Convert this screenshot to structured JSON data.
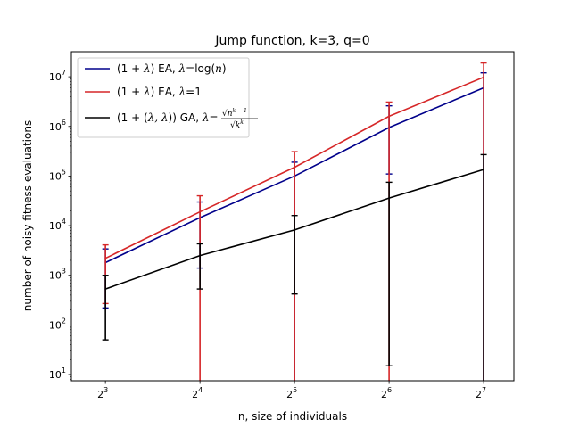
{
  "chart_data": {
    "type": "line",
    "title": "Jump function, k=3, q=0",
    "xlabel": "n, size of individuals",
    "ylabel": "number of noisy fitness evaluations",
    "x_scale": "log2",
    "y_scale": "log10",
    "x": [
      8,
      16,
      32,
      64,
      128
    ],
    "x_tick_labels": [
      {
        "base": "2",
        "exp": "3"
      },
      {
        "base": "2",
        "exp": "4"
      },
      {
        "base": "2",
        "exp": "5"
      },
      {
        "base": "2",
        "exp": "6"
      },
      {
        "base": "2",
        "exp": "7"
      }
    ],
    "y_ticks": [
      10,
      100,
      1000,
      10000,
      100000,
      1000000,
      10000000
    ],
    "y_tick_labels": [
      {
        "base": "10",
        "exp": "1"
      },
      {
        "base": "10",
        "exp": "2"
      },
      {
        "base": "10",
        "exp": "3"
      },
      {
        "base": "10",
        "exp": "4"
      },
      {
        "base": "10",
        "exp": "5"
      },
      {
        "base": "10",
        "exp": "6"
      },
      {
        "base": "10",
        "exp": "7"
      }
    ],
    "xlim_exp2": [
      2.64,
      7.32
    ],
    "ylim": [
      7.5,
      32000000
    ],
    "legend_position": "top-left",
    "series": [
      {
        "name": "(1+λ) EA, λ=log(n)",
        "color": "#00008b",
        "values": [
          1800,
          14500,
          100000,
          950000,
          6000000
        ],
        "err_low": [
          220,
          1400,
          7.5,
          110000,
          7.5
        ],
        "err_high": [
          3400,
          30000,
          190000,
          2600000,
          12000000
        ]
      },
      {
        "name": "(1+λ) EA, λ=1",
        "color": "#d62728",
        "values": [
          2200,
          19000,
          150000,
          1600000,
          9800000
        ],
        "err_low": [
          270,
          7.5,
          7.5,
          7.5,
          7.5
        ],
        "err_high": [
          4100,
          40000,
          310000,
          3100000,
          19000000
        ]
      },
      {
        "name": "(1+(λ,λ)) GA, λ=√n^(k-1)/√k^k",
        "color": "#000000",
        "values": [
          530,
          2500,
          8200,
          36000,
          135000
        ],
        "err_low": [
          50,
          530,
          420,
          15,
          7.5
        ],
        "err_high": [
          1000,
          4300,
          16000,
          75000,
          270000
        ]
      }
    ]
  },
  "legend": {
    "ea_prefix": "(1 + ",
    "ea_mid": ") EA, ",
    "ga_prefix": "(1 + (",
    "ga_mid": ")) GA, ",
    "lambda_symbol": "λ",
    "lambda_pair": "λ, λ",
    "series1_suffix": "=log(",
    "series1_var": "n",
    "series1_close": ")",
    "series2_suffix": "=1",
    "series3_eq": "=",
    "series3_numerator": "√n",
    "series3_num_exp": "k − 1",
    "series3_denominator": "√k",
    "series3_den_exp": "k"
  }
}
